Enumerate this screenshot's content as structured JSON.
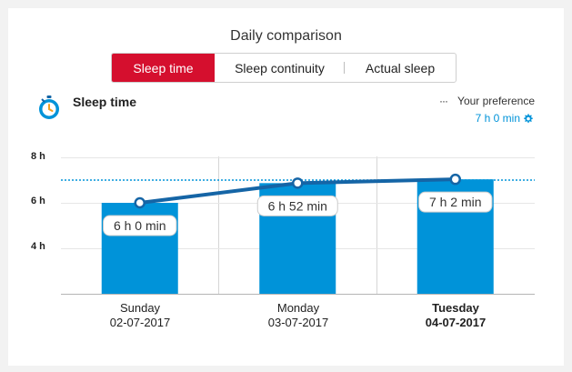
{
  "header": {
    "title": "Daily comparison"
  },
  "tabs": [
    {
      "label": "Sleep time",
      "active": true
    },
    {
      "label": "Sleep continuity",
      "active": false
    },
    {
      "label": "Actual sleep",
      "active": false
    }
  ],
  "section": {
    "title": "Sleep time",
    "icon": "alarm-clock-icon"
  },
  "preference": {
    "label": "Your preference",
    "value": "7 h 0 min",
    "icon": "gear-icon"
  },
  "colors": {
    "accent_red": "#d50f2e",
    "bar_blue": "#0093d9",
    "line_blue": "#1565a6",
    "pref_blue": "#0093d9"
  },
  "chart_data": {
    "type": "bar",
    "categories": [
      "Sunday",
      "Monday",
      "Tuesday"
    ],
    "dates": [
      "02-07-2017",
      "03-07-2017",
      "04-07-2017"
    ],
    "values": [
      6.0,
      6.8667,
      7.0333
    ],
    "value_labels": [
      "6 h 0 min",
      "6 h 52 min",
      "7 h 2 min"
    ],
    "highlighted_category": "Tuesday",
    "ytick_labels": [
      "4 h",
      "6 h",
      "8 h"
    ],
    "yticks": [
      4,
      6,
      8
    ],
    "ylim": [
      2,
      8
    ],
    "reference_value": 7.0,
    "line_overlay": true
  }
}
